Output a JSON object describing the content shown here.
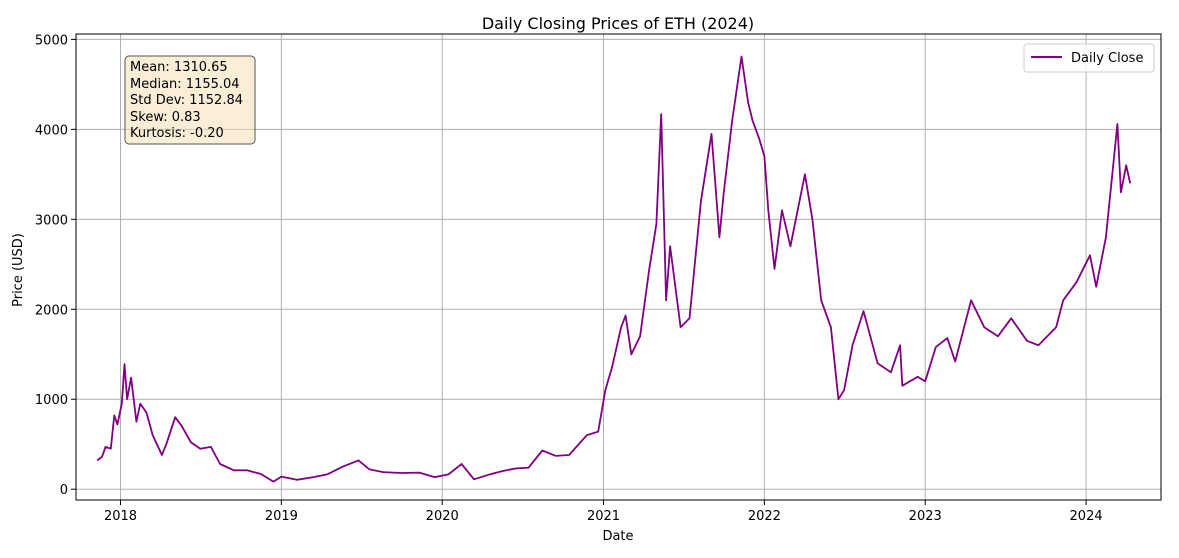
{
  "chart_data": {
    "type": "line",
    "title": "Daily Closing Prices of ETH (2024)",
    "xlabel": "Date",
    "ylabel": "Price (USD)",
    "xlim": [
      "2017-09-22",
      "2024-06-19"
    ],
    "ylim": [
      -120,
      5060
    ],
    "grid": true,
    "legend_position": "top-right",
    "x_ticks": [
      "2018",
      "2019",
      "2020",
      "2021",
      "2022",
      "2023",
      "2024"
    ],
    "y_ticks": [
      "0",
      "1000",
      "2000",
      "3000",
      "4000",
      "5000"
    ],
    "series": [
      {
        "name": "Daily Close",
        "color": "#800080",
        "points": [
          [
            "2017-11-09",
            320
          ],
          [
            "2017-11-20",
            360
          ],
          [
            "2017-11-28",
            470
          ],
          [
            "2017-12-10",
            450
          ],
          [
            "2017-12-18",
            820
          ],
          [
            "2017-12-25",
            720
          ],
          [
            "2018-01-04",
            950
          ],
          [
            "2018-01-10",
            1390
          ],
          [
            "2018-01-16",
            1000
          ],
          [
            "2018-01-25",
            1240
          ],
          [
            "2018-02-06",
            750
          ],
          [
            "2018-02-15",
            950
          ],
          [
            "2018-03-01",
            850
          ],
          [
            "2018-03-15",
            600
          ],
          [
            "2018-04-05",
            380
          ],
          [
            "2018-04-15",
            500
          ],
          [
            "2018-05-05",
            800
          ],
          [
            "2018-05-20",
            700
          ],
          [
            "2018-06-10",
            520
          ],
          [
            "2018-07-01",
            450
          ],
          [
            "2018-07-25",
            470
          ],
          [
            "2018-08-15",
            280
          ],
          [
            "2018-09-15",
            210
          ],
          [
            "2018-10-15",
            210
          ],
          [
            "2018-11-15",
            170
          ],
          [
            "2018-12-14",
            85
          ],
          [
            "2019-01-01",
            140
          ],
          [
            "2019-02-05",
            105
          ],
          [
            "2019-03-15",
            135
          ],
          [
            "2019-04-15",
            165
          ],
          [
            "2019-05-20",
            250
          ],
          [
            "2019-06-25",
            320
          ],
          [
            "2019-07-20",
            220
          ],
          [
            "2019-08-20",
            190
          ],
          [
            "2019-10-01",
            180
          ],
          [
            "2019-11-10",
            185
          ],
          [
            "2019-12-15",
            135
          ],
          [
            "2020-01-15",
            165
          ],
          [
            "2020-02-14",
            280
          ],
          [
            "2020-03-13",
            110
          ],
          [
            "2020-04-15",
            160
          ],
          [
            "2020-05-15",
            200
          ],
          [
            "2020-06-15",
            230
          ],
          [
            "2020-07-15",
            240
          ],
          [
            "2020-08-15",
            430
          ],
          [
            "2020-09-15",
            370
          ],
          [
            "2020-10-15",
            380
          ],
          [
            "2020-11-24",
            600
          ],
          [
            "2020-12-20",
            640
          ],
          [
            "2021-01-05",
            1100
          ],
          [
            "2021-01-20",
            1350
          ],
          [
            "2021-02-10",
            1800
          ],
          [
            "2021-02-20",
            1930
          ],
          [
            "2021-03-05",
            1500
          ],
          [
            "2021-03-25",
            1700
          ],
          [
            "2021-04-15",
            2450
          ],
          [
            "2021-05-01",
            2950
          ],
          [
            "2021-05-12",
            4170
          ],
          [
            "2021-05-23",
            2100
          ],
          [
            "2021-06-01",
            2700
          ],
          [
            "2021-06-25",
            1800
          ],
          [
            "2021-07-15",
            1900
          ],
          [
            "2021-08-10",
            3200
          ],
          [
            "2021-09-03",
            3950
          ],
          [
            "2021-09-21",
            2800
          ],
          [
            "2021-10-01",
            3300
          ],
          [
            "2021-10-20",
            4100
          ],
          [
            "2021-11-10",
            4810
          ],
          [
            "2021-11-25",
            4300
          ],
          [
            "2021-12-05",
            4100
          ],
          [
            "2021-12-20",
            3900
          ],
          [
            "2022-01-01",
            3700
          ],
          [
            "2022-01-10",
            3100
          ],
          [
            "2022-01-24",
            2450
          ],
          [
            "2022-02-10",
            3100
          ],
          [
            "2022-03-01",
            2700
          ],
          [
            "2022-04-03",
            3500
          ],
          [
            "2022-04-20",
            3000
          ],
          [
            "2022-05-10",
            2100
          ],
          [
            "2022-06-01",
            1800
          ],
          [
            "2022-06-18",
            1000
          ],
          [
            "2022-07-01",
            1100
          ],
          [
            "2022-07-20",
            1600
          ],
          [
            "2022-08-14",
            1980
          ],
          [
            "2022-09-15",
            1400
          ],
          [
            "2022-10-15",
            1300
          ],
          [
            "2022-11-05",
            1600
          ],
          [
            "2022-11-10",
            1150
          ],
          [
            "2022-12-15",
            1250
          ],
          [
            "2023-01-01",
            1200
          ],
          [
            "2023-01-25",
            1580
          ],
          [
            "2023-02-20",
            1680
          ],
          [
            "2023-03-10",
            1420
          ],
          [
            "2023-04-15",
            2100
          ],
          [
            "2023-05-15",
            1800
          ],
          [
            "2023-06-15",
            1700
          ],
          [
            "2023-07-15",
            1900
          ],
          [
            "2023-08-20",
            1650
          ],
          [
            "2023-09-15",
            1600
          ],
          [
            "2023-10-25",
            1800
          ],
          [
            "2023-11-10",
            2100
          ],
          [
            "2023-12-10",
            2300
          ],
          [
            "2024-01-10",
            2600
          ],
          [
            "2024-01-24",
            2250
          ],
          [
            "2024-02-15",
            2800
          ],
          [
            "2024-03-12",
            4060
          ],
          [
            "2024-03-20",
            3300
          ],
          [
            "2024-04-01",
            3600
          ],
          [
            "2024-04-10",
            3400
          ]
        ]
      }
    ]
  },
  "stats_box": {
    "mean": "Mean: 1310.65",
    "median": "Median: 1155.04",
    "std_dev": "Std Dev: 1152.84",
    "skew": "Skew: 0.83",
    "kurtosis": "Kurtosis: -0.20",
    "background": "#f5deb3"
  }
}
